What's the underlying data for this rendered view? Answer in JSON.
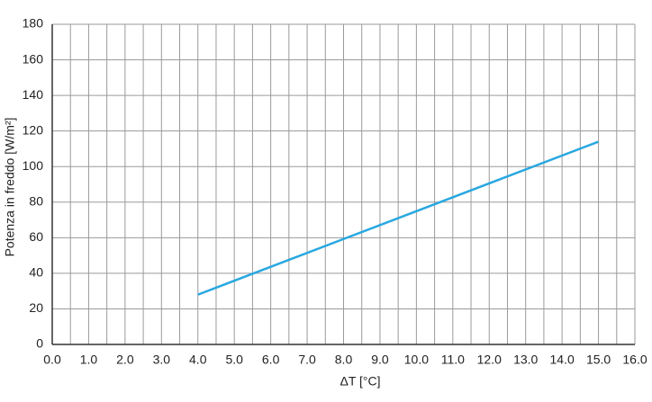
{
  "chart_data": {
    "type": "line",
    "x_label": "ΔT [°C]",
    "y_label": "Potenza in freddo [W/m²]",
    "x": [
      4.0,
      15.0
    ],
    "series": [
      {
        "color": "#29a8e0",
        "values": [
          28,
          114
        ]
      }
    ],
    "xlim": [
      0,
      16
    ],
    "ylim": [
      0,
      180
    ],
    "xticks": [
      {
        "value": 0,
        "label": "0.0"
      },
      {
        "value": 1,
        "label": "1.0"
      },
      {
        "value": 2,
        "label": "2.0"
      },
      {
        "value": 3,
        "label": "3.0"
      },
      {
        "value": 4,
        "label": "4.0"
      },
      {
        "value": 5,
        "label": "5.0"
      },
      {
        "value": 6,
        "label": "6.0"
      },
      {
        "value": 7,
        "label": "7.0"
      },
      {
        "value": 8,
        "label": "8.0"
      },
      {
        "value": 9,
        "label": "9.0"
      },
      {
        "value": 10,
        "label": "10.0"
      },
      {
        "value": 11,
        "label": "11.0"
      },
      {
        "value": 12,
        "label": "12.0"
      },
      {
        "value": 13,
        "label": "13.0"
      },
      {
        "value": 14,
        "label": "14.0"
      },
      {
        "value": 15,
        "label": "15.0"
      },
      {
        "value": 16,
        "label": "16.0"
      }
    ],
    "xminorticks": [
      0.5,
      1.5,
      2.5,
      3.5,
      4.5,
      5.5,
      6.5,
      7.5,
      8.5,
      9.5,
      10.5,
      11.5,
      12.5,
      13.5,
      14.5,
      15.5
    ],
    "yticks": [
      0,
      20,
      40,
      60,
      80,
      100,
      120,
      140,
      160,
      180
    ],
    "grid": true
  }
}
